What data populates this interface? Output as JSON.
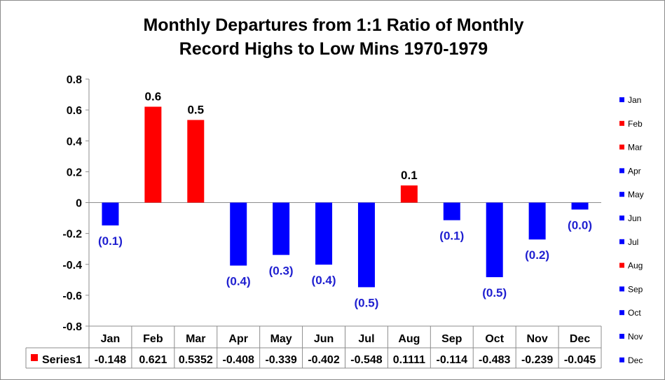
{
  "chart_data": {
    "type": "bar",
    "title_lines": [
      "Monthly Departures from 1:1 Ratio of Monthly",
      "Record Highs to Low Mins 1970-1979"
    ],
    "categories": [
      "Jan",
      "Feb",
      "Mar",
      "Apr",
      "May",
      "Jun",
      "Jul",
      "Aug",
      "Sep",
      "Oct",
      "Nov",
      "Dec"
    ],
    "series": [
      {
        "name": "Series1",
        "values": [
          -0.148,
          0.621,
          0.5352,
          -0.408,
          -0.339,
          -0.402,
          -0.548,
          0.1111,
          -0.114,
          -0.483,
          -0.239,
          -0.045
        ],
        "table_values": [
          "-0.148",
          "0.621",
          "0.5352",
          "-0.408",
          "-0.339",
          "-0.402",
          "-0.548",
          "0.1111",
          "-0.114",
          "-0.483",
          "-0.239",
          "-0.045"
        ],
        "data_labels": [
          "(0.1)",
          "0.6",
          "0.5",
          "(0.4)",
          "(0.3)",
          "(0.4)",
          "(0.5)",
          "0.1",
          "(0.1)",
          "(0.5)",
          "(0.2)",
          "(0.0)"
        ]
      }
    ],
    "y_ticks": [
      "0.8",
      "0.6",
      "0.4",
      "0.2",
      "0",
      "-0.2",
      "-0.4",
      "-0.6",
      "-0.8"
    ],
    "ylim": [
      -0.8,
      0.8
    ],
    "legend_position": "right",
    "data_table": true,
    "colors": {
      "positive": "#ff0000",
      "negative": "#0000ff",
      "negative_label": "#1f1fd0",
      "positive_label": "#000000",
      "grid": "#8c8c8c"
    }
  }
}
